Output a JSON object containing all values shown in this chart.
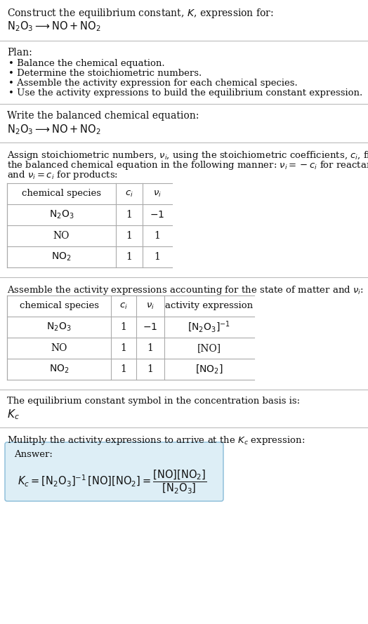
{
  "bg_color": "#ffffff",
  "text_color": "#111111",
  "section_bg": "#ddeef6",
  "title_line1": "Construct the equilibrium constant, $K$, expression for:",
  "title_line2": "$\\mathrm{N_2O_3} \\longrightarrow \\mathrm{NO} + \\mathrm{NO_2}$",
  "plan_header": "Plan:",
  "plan_items": [
    "• Balance the chemical equation.",
    "• Determine the stoichiometric numbers.",
    "• Assemble the activity expression for each chemical species.",
    "• Use the activity expressions to build the equilibrium constant expression."
  ],
  "balanced_eq_header": "Write the balanced chemical equation:",
  "balanced_eq": "$\\mathrm{N_2O_3} \\longrightarrow \\mathrm{NO} + \\mathrm{NO_2}$",
  "assign_text_lines": [
    "Assign stoichiometric numbers, $\\nu_i$, using the stoichiometric coefficients, $c_i$, from",
    "the balanced chemical equation in the following manner: $\\nu_i = -c_i$ for reactants",
    "and $\\nu_i = c_i$ for products:"
  ],
  "table1_headers": [
    "chemical species",
    "$c_i$",
    "$\\nu_i$"
  ],
  "table1_rows": [
    [
      "$\\mathrm{N_2O_3}$",
      "1",
      "$-1$"
    ],
    [
      "NO",
      "1",
      "1"
    ],
    [
      "$\\mathrm{NO_2}$",
      "1",
      "1"
    ]
  ],
  "assemble_text": "Assemble the activity expressions accounting for the state of matter and $\\nu_i$:",
  "table2_headers": [
    "chemical species",
    "$c_i$",
    "$\\nu_i$",
    "activity expression"
  ],
  "table2_rows": [
    [
      "$\\mathrm{N_2O_3}$",
      "1",
      "$-1$",
      "$[\\mathrm{N_2O_3}]^{-1}$"
    ],
    [
      "NO",
      "1",
      "1",
      "[NO]"
    ],
    [
      "$\\mathrm{NO_2}$",
      "1",
      "1",
      "$[\\mathrm{NO_2}]$"
    ]
  ],
  "kc_text1": "The equilibrium constant symbol in the concentration basis is:",
  "kc_symbol": "$K_c$",
  "multiply_text": "Mulitply the activity expressions to arrive at the $K_c$ expression:",
  "answer_label": "Answer:",
  "answer_line1": "$K_c = [\\mathrm{N_2O_3}]^{-1}\\,[\\mathrm{NO}][\\mathrm{NO_2}] = \\dfrac{[\\mathrm{NO}][\\mathrm{NO_2}]}{[\\mathrm{N_2O_3}]}$"
}
